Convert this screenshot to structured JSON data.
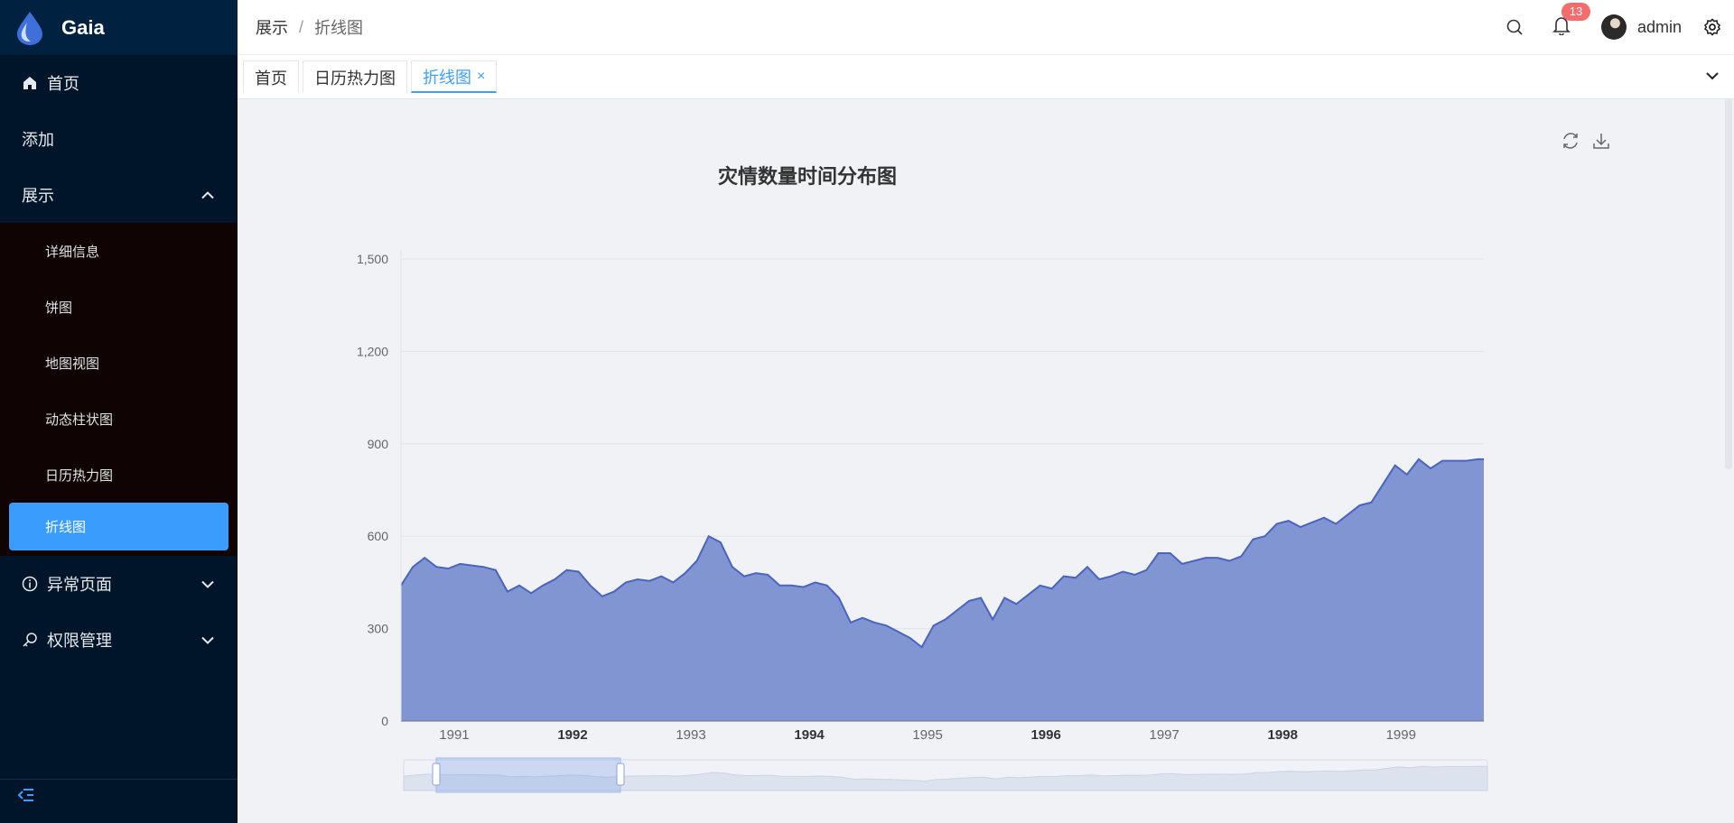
{
  "app": {
    "name": "Gaia"
  },
  "sidebar": {
    "items": [
      {
        "label": "首页",
        "icon": "home-icon"
      },
      {
        "label": "添加"
      },
      {
        "label": "展示",
        "expanded": true,
        "children": [
          "详细信息",
          "饼图",
          "地图视图",
          "动态柱状图",
          "日历热力图",
          "折线图"
        ],
        "active_child": "折线图"
      },
      {
        "label": "异常页面",
        "icon": "info-circle-icon"
      },
      {
        "label": "权限管理",
        "icon": "key-icon"
      }
    ],
    "collapse_icon": "menu-fold-icon"
  },
  "header": {
    "breadcrumb": [
      "展示",
      "折线图"
    ],
    "separator": "/",
    "notification_count": "13",
    "username": "admin"
  },
  "tabs": [
    {
      "label": "首页"
    },
    {
      "label": "日历热力图"
    },
    {
      "label": "折线图",
      "active": true,
      "close": "×"
    }
  ],
  "colors": {
    "sidebar_bg": "#001529",
    "accent": "#409eff",
    "series_fill": "#8095d2",
    "series_line": "#4a64bf",
    "badge": "#f56c6c"
  },
  "chart_data": {
    "type": "area",
    "title": "灾情数量时间分布图",
    "xlabel": "",
    "ylabel": "",
    "ylim": [
      0,
      1500
    ],
    "y_ticks": [
      0,
      300,
      600,
      900,
      1200,
      1500
    ],
    "y_tick_labels": [
      "0",
      "300",
      "600",
      "900",
      "1,200",
      "1,500"
    ],
    "x_ticks": [
      "1991",
      "1992",
      "1993",
      "1994",
      "1995",
      "1996",
      "1997",
      "1998",
      "1999"
    ],
    "x_ticks_bold": [
      "1992",
      "1994",
      "1996",
      "1998"
    ],
    "x_range": [
      1990.55,
      1999.7
    ],
    "grid": true,
    "series": [
      {
        "x": [
          1990.55,
          1990.65,
          1990.75,
          1990.85,
          1990.95,
          1991.05,
          1991.15,
          1991.25,
          1991.35,
          1991.45,
          1991.55,
          1991.65,
          1991.75,
          1991.85,
          1991.95,
          1992.05,
          1992.15,
          1992.25,
          1992.35,
          1992.45,
          1992.55,
          1992.65,
          1992.75,
          1992.85,
          1992.95,
          1993.05,
          1993.15,
          1993.25,
          1993.35,
          1993.45,
          1993.55,
          1993.65,
          1993.75,
          1993.85,
          1993.95,
          1994.05,
          1994.15,
          1994.25,
          1994.35,
          1994.45,
          1994.55,
          1994.65,
          1994.75,
          1994.85,
          1994.95,
          1995.05,
          1995.15,
          1995.25,
          1995.35,
          1995.45,
          1995.55,
          1995.65,
          1995.75,
          1995.85,
          1995.95,
          1996.05,
          1996.15,
          1996.25,
          1996.35,
          1996.45,
          1996.55,
          1996.65,
          1996.75,
          1996.85,
          1996.95,
          1997.05,
          1997.15,
          1997.25,
          1997.35,
          1997.45,
          1997.55,
          1997.65,
          1997.75,
          1997.85,
          1997.95,
          1998.05,
          1998.15,
          1998.25,
          1998.35,
          1998.45,
          1998.55,
          1998.65,
          1998.75,
          1998.85,
          1998.95,
          1999.05,
          1999.15,
          1999.25,
          1999.35,
          1999.45,
          1999.55,
          1999.65,
          1999.7
        ],
        "values": [
          440,
          500,
          530,
          500,
          495,
          510,
          505,
          500,
          490,
          420,
          440,
          415,
          440,
          460,
          490,
          485,
          440,
          405,
          420,
          450,
          460,
          455,
          470,
          450,
          480,
          520,
          600,
          580,
          500,
          470,
          480,
          475,
          440,
          440,
          435,
          450,
          440,
          400,
          320,
          335,
          320,
          310,
          290,
          270,
          240,
          310,
          330,
          360,
          390,
          400,
          330,
          400,
          380,
          410,
          440,
          430,
          470,
          465,
          500,
          460,
          470,
          485,
          475,
          490,
          545,
          545,
          510,
          520,
          530,
          530,
          520,
          535,
          590,
          600,
          640,
          650,
          630,
          645,
          660,
          640,
          670,
          700,
          710,
          770,
          830,
          800,
          850,
          820,
          845,
          845,
          845,
          850,
          850
        ]
      }
    ],
    "data_zoom": {
      "start": 0.03,
      "end": 0.2
    }
  }
}
